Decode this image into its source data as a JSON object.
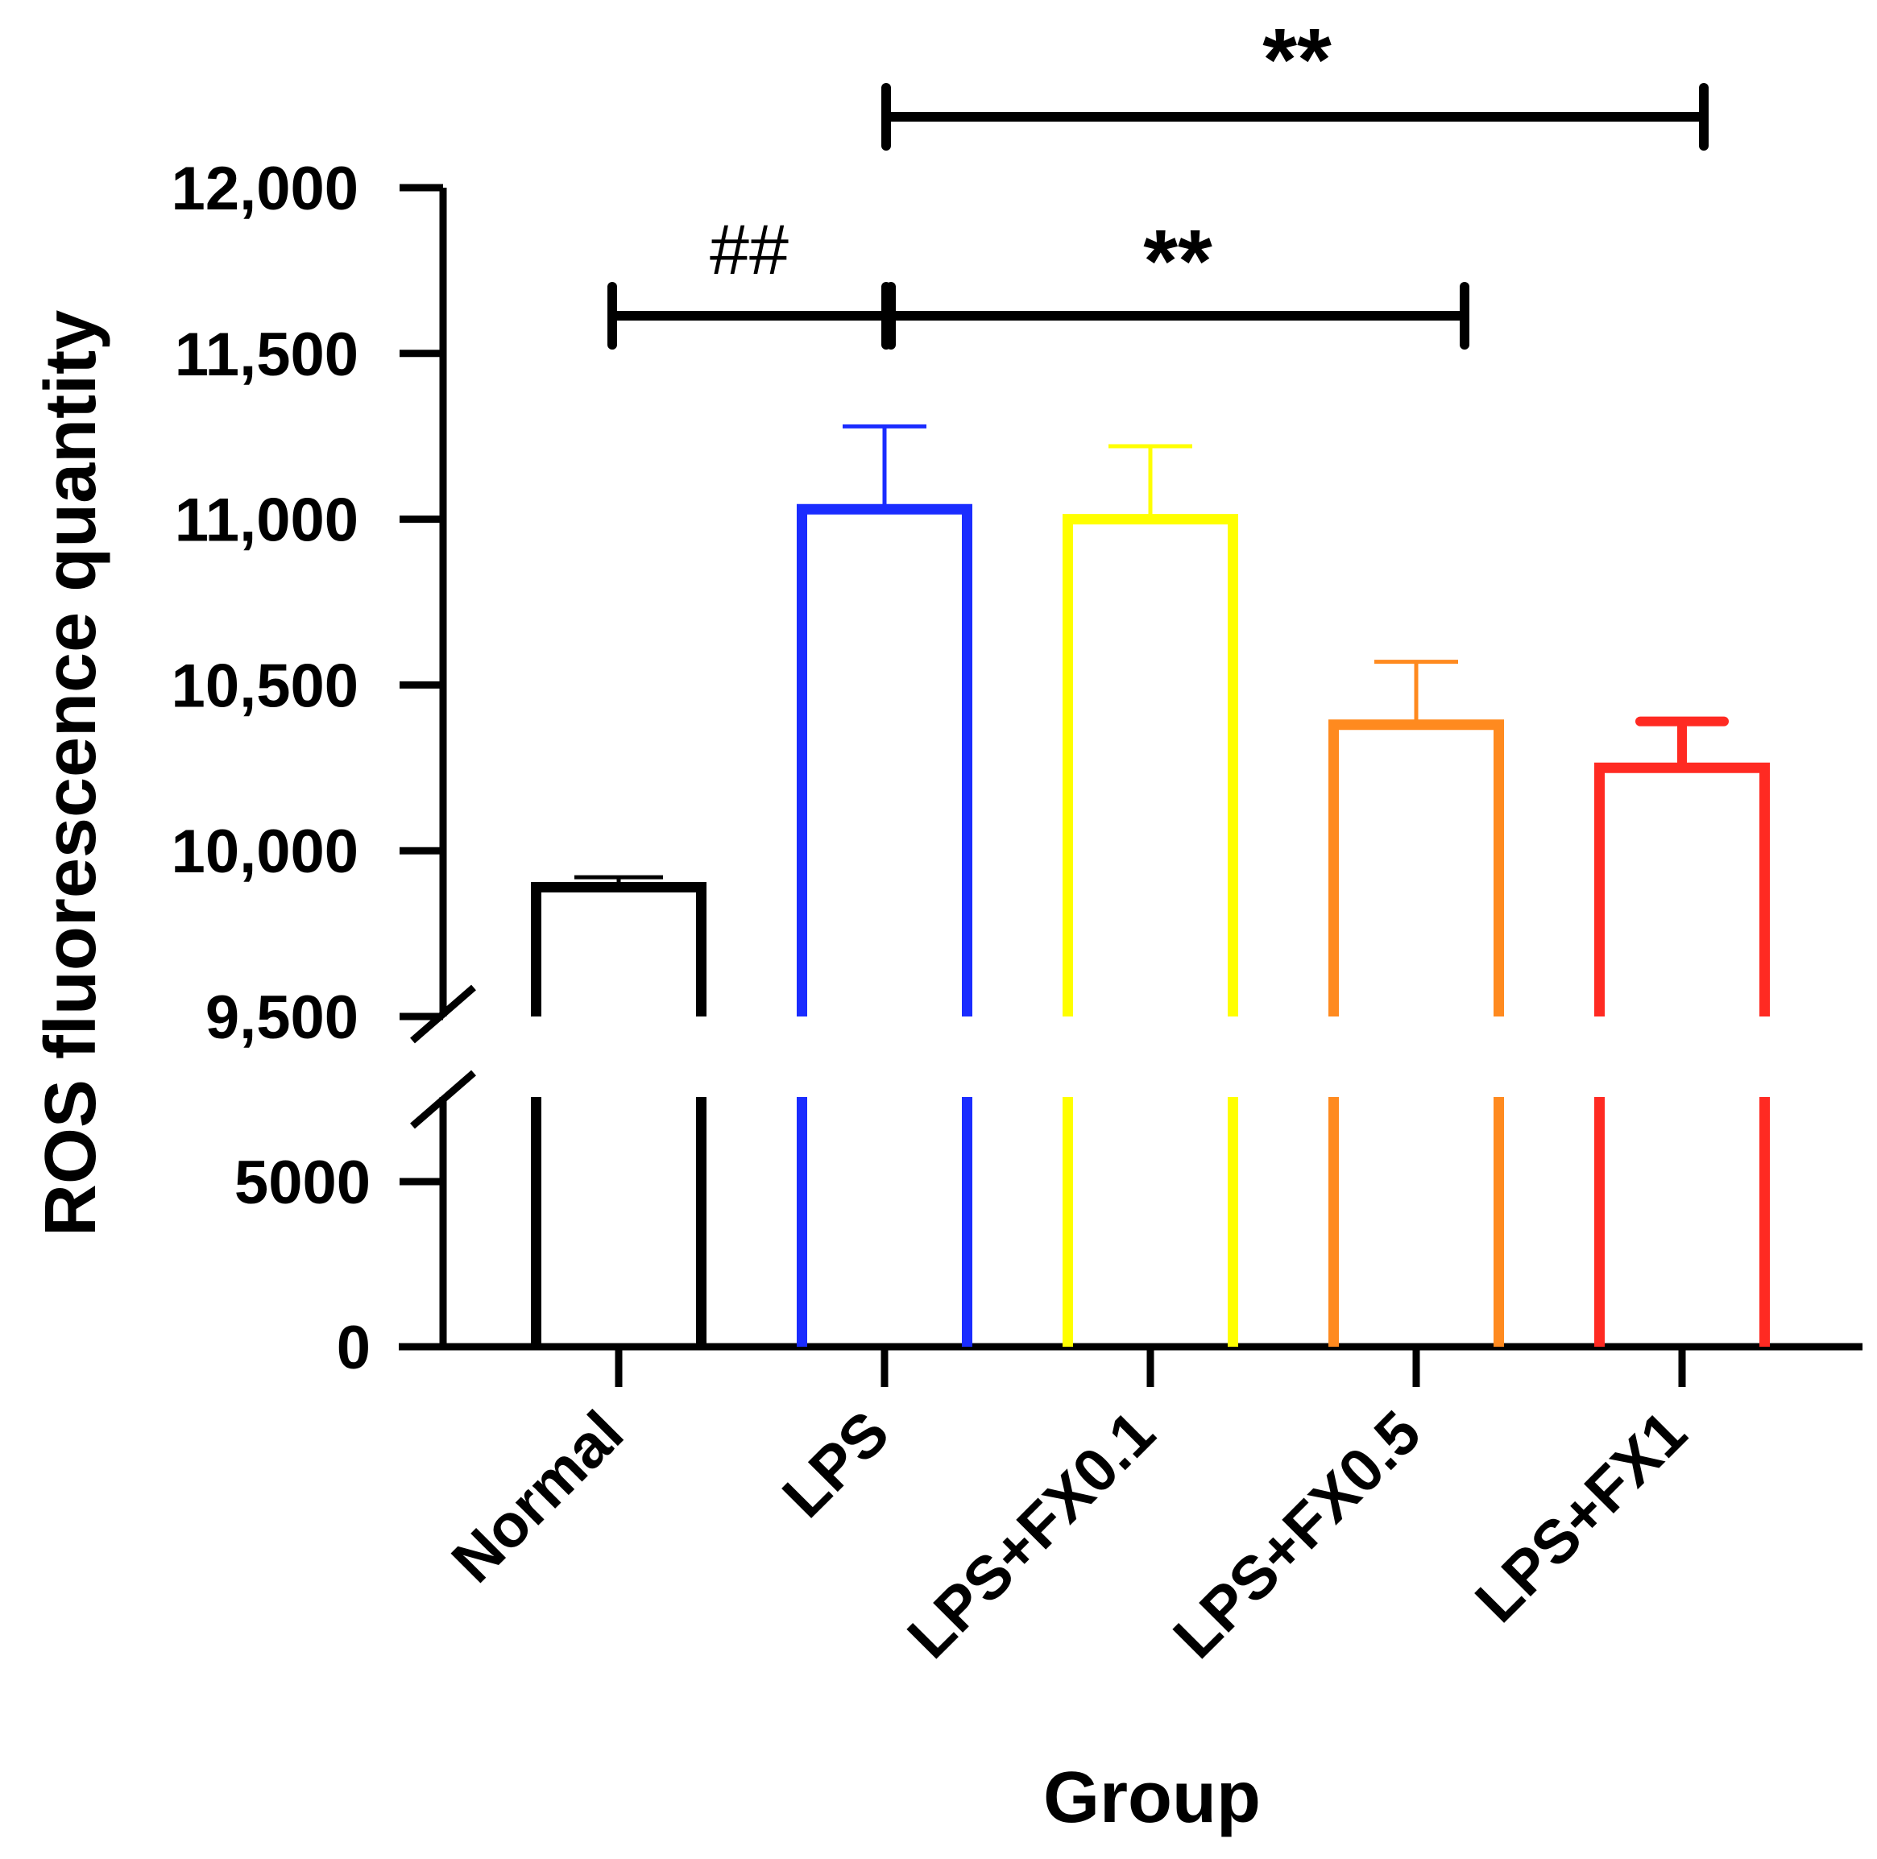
{
  "chart_data": {
    "type": "bar",
    "title": "",
    "xlabel": "Group",
    "ylabel": "ROS fluorescence quantity",
    "categories": [
      "Normal",
      "LPS",
      "LPS+FX0.1",
      "LPS+FX0.5",
      "LPS+FX1"
    ],
    "values": [
      9890,
      11030,
      11000,
      10380,
      10250
    ],
    "errors": [
      30,
      250,
      220,
      190,
      140
    ],
    "colors": [
      "#000000",
      "#1a2cff",
      "#ffff00",
      "#ff8a1f",
      "#ff2a22"
    ],
    "axis_break": {
      "lower_range": [
        0,
        7500
      ],
      "upper_range": [
        9500,
        12000
      ]
    },
    "lower_ticks": [
      "0",
      "5000"
    ],
    "lower_tick_values": [
      0,
      5000
    ],
    "upper_ticks": [
      "9,500",
      "10,000",
      "10,500",
      "11,000",
      "11,500",
      "12,000"
    ],
    "upper_tick_values": [
      9500,
      10000,
      10500,
      11000,
      11500,
      12000
    ],
    "significance": [
      {
        "from": "Normal",
        "to": "LPS",
        "label": "##"
      },
      {
        "from": "LPS",
        "to": "LPS+FX0.5",
        "label": "**"
      },
      {
        "from": "LPS",
        "to": "LPS+FX1",
        "label": "**"
      }
    ]
  }
}
